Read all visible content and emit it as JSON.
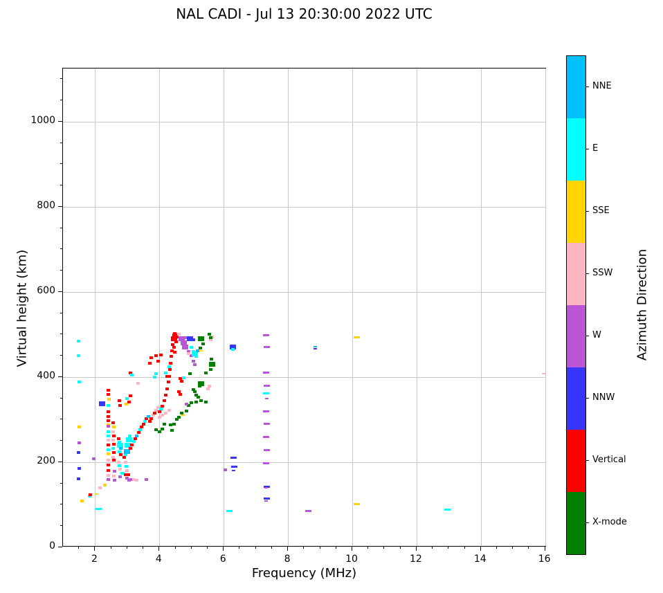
{
  "title": "NAL CADI - Jul 13 20:30:00 2022 UTC",
  "chart_data": {
    "type": "scatter",
    "title": "NAL CADI - Jul 13 20:30:00 2022 UTC",
    "xlabel": "Frequency (MHz)",
    "ylabel": "Virtual height (km)",
    "xlim": [
      1,
      16.05
    ],
    "ylim": [
      0,
      1125
    ],
    "grid": true,
    "x_major_ticks": [
      2,
      4,
      6,
      8,
      10,
      12,
      14,
      16
    ],
    "x_tick_labels": [
      "2",
      "4",
      "6",
      "8",
      "10",
      "12",
      "14",
      "16"
    ],
    "x_minor_step": 0.5,
    "y_major_ticks": [
      0,
      200,
      400,
      600,
      800,
      1000
    ],
    "y_tick_labels": [
      "0",
      "200",
      "400",
      "600",
      "800",
      "1000"
    ],
    "y_minor_step": 50,
    "legend_position": "right-colorbar",
    "colorbar": {
      "label": "Azimuth Direction",
      "segments_top_to_bottom": [
        {
          "key": "NNE",
          "label": "NNE"
        },
        {
          "key": "E",
          "label": "E"
        },
        {
          "key": "SSE",
          "label": "SSE"
        },
        {
          "key": "SSW",
          "label": "SSW"
        },
        {
          "key": "W",
          "label": "W"
        },
        {
          "key": "NNW",
          "label": "NNW"
        },
        {
          "key": "V",
          "label": "Vertical"
        },
        {
          "key": "X",
          "label": "X-mode"
        }
      ]
    },
    "colors": {
      "NNE": "#00BFFF",
      "E": "#00FFFF",
      "SSE": "#FFD400",
      "SSW": "#FFB6C1",
      "W": "#BA55D3",
      "NNW": "#3636FC",
      "V": "#FF0000",
      "X": "#008000"
    },
    "point_units": [
      "frequency_MHz",
      "virtual_height_km",
      "azimuth_key",
      "size_code"
    ],
    "points": [
      [
        1.48,
        485,
        "E"
      ],
      [
        1.48,
        450,
        "E"
      ],
      [
        1.51,
        389,
        "E"
      ],
      [
        1.51,
        283,
        "SSE"
      ],
      [
        1.51,
        246,
        "W"
      ],
      [
        1.48,
        223,
        "NNW"
      ],
      [
        1.51,
        185,
        "NNW"
      ],
      [
        1.48,
        161,
        "NNW"
      ],
      [
        1.6,
        109,
        "SSE"
      ],
      [
        1.82,
        120,
        "E"
      ],
      [
        1.84,
        124,
        "V"
      ],
      [
        2.05,
        125,
        "SSE",
        4
      ],
      [
        2.11,
        91,
        "E",
        3
      ],
      [
        2.16,
        140,
        "SSW"
      ],
      [
        2.3,
        146,
        "SSE"
      ],
      [
        1.95,
        208,
        "W"
      ],
      [
        2.21,
        337,
        "NNW",
        2
      ],
      [
        2.4,
        369,
        "V"
      ],
      [
        2.42,
        360,
        "V"
      ],
      [
        2.43,
        348,
        "SSE"
      ],
      [
        2.42,
        333,
        "E"
      ],
      [
        2.4,
        318,
        "V"
      ],
      [
        2.4,
        308,
        "V"
      ],
      [
        2.42,
        298,
        "V"
      ],
      [
        2.4,
        288,
        "SSE"
      ],
      [
        2.42,
        284,
        "W"
      ],
      [
        2.4,
        272,
        "E"
      ],
      [
        2.42,
        261,
        "E"
      ],
      [
        2.4,
        252,
        "SSW"
      ],
      [
        2.42,
        241,
        "V"
      ],
      [
        2.4,
        230,
        "E"
      ],
      [
        2.42,
        219,
        "SSE"
      ],
      [
        2.4,
        205,
        "SSW"
      ],
      [
        2.42,
        193,
        "V"
      ],
      [
        2.4,
        181,
        "V"
      ],
      [
        2.42,
        169,
        "SSW"
      ],
      [
        2.4,
        160,
        "W"
      ],
      [
        2.56,
        293,
        "V"
      ],
      [
        2.58,
        283,
        "SSE"
      ],
      [
        2.56,
        272,
        "SSW"
      ],
      [
        2.58,
        262,
        "V"
      ],
      [
        2.56,
        252,
        "SSW"
      ],
      [
        2.58,
        243,
        "V"
      ],
      [
        2.56,
        232,
        "E"
      ],
      [
        2.58,
        222,
        "V"
      ],
      [
        2.56,
        212,
        "SSW"
      ],
      [
        2.58,
        205,
        "V"
      ],
      [
        2.6,
        179,
        "W"
      ],
      [
        2.58,
        168,
        "SSW"
      ],
      [
        2.6,
        157,
        "W"
      ],
      [
        2.73,
        255,
        "V"
      ],
      [
        2.75,
        247,
        "E"
      ],
      [
        2.77,
        240,
        "E",
        2
      ],
      [
        2.79,
        232,
        "NNE"
      ],
      [
        2.75,
        225,
        "E"
      ],
      [
        2.8,
        218,
        "V"
      ],
      [
        2.73,
        200,
        "SSW"
      ],
      [
        2.75,
        192,
        "E"
      ],
      [
        2.77,
        184,
        "SSW"
      ],
      [
        2.77,
        166,
        "W"
      ],
      [
        2.78,
        334,
        "V"
      ],
      [
        2.75,
        345,
        "V"
      ],
      [
        2.98,
        336,
        "SSE"
      ],
      [
        2.84,
        174,
        "E"
      ],
      [
        3.03,
        171,
        "V"
      ],
      [
        3.0,
        163,
        "W"
      ],
      [
        3.05,
        158,
        "W"
      ],
      [
        3.12,
        160,
        "W"
      ],
      [
        3.6,
        159,
        "W"
      ],
      [
        3.2,
        160,
        "SSW"
      ],
      [
        3.3,
        158,
        "SSW"
      ],
      [
        2.95,
        200,
        "SSW"
      ],
      [
        2.97,
        190,
        "E"
      ],
      [
        3.0,
        180,
        "SSW"
      ],
      [
        2.95,
        170,
        "V"
      ],
      [
        3.0,
        350,
        "E"
      ],
      [
        3.05,
        342,
        "V"
      ],
      [
        3.1,
        356,
        "V"
      ],
      [
        3.1,
        410,
        "V"
      ],
      [
        3.15,
        405,
        "E"
      ],
      [
        3.33,
        385,
        "SSW"
      ],
      [
        2.9,
        212,
        "V"
      ],
      [
        2.95,
        218,
        "E"
      ],
      [
        3.0,
        225,
        "NNE",
        2
      ],
      [
        3.02,
        240,
        "E",
        2
      ],
      [
        3.05,
        252,
        "E",
        2
      ],
      [
        3.08,
        262,
        "E"
      ],
      [
        3.1,
        232,
        "V"
      ],
      [
        3.15,
        240,
        "V"
      ],
      [
        3.2,
        248,
        "E"
      ],
      [
        3.25,
        255,
        "V"
      ],
      [
        3.3,
        262,
        "NNE"
      ],
      [
        3.35,
        270,
        "V"
      ],
      [
        3.4,
        276,
        "E"
      ],
      [
        3.45,
        283,
        "V"
      ],
      [
        3.5,
        290,
        "V"
      ],
      [
        3.55,
        296,
        "E"
      ],
      [
        3.6,
        302,
        "V"
      ],
      [
        3.65,
        308,
        "NNE"
      ],
      [
        3.7,
        296,
        "V"
      ],
      [
        3.75,
        303,
        "V"
      ],
      [
        3.8,
        310,
        "SSW"
      ],
      [
        3.85,
        316,
        "V"
      ],
      [
        3.9,
        322,
        "SSW"
      ],
      [
        3.95,
        328,
        "SSW"
      ],
      [
        4.0,
        318,
        "V"
      ],
      [
        4.05,
        325,
        "E"
      ],
      [
        4.1,
        332,
        "V"
      ],
      [
        4.0,
        305,
        "SSW"
      ],
      [
        4.1,
        310,
        "SSW"
      ],
      [
        4.2,
        316,
        "SSW"
      ],
      [
        4.3,
        322,
        "SSW"
      ],
      [
        4.15,
        345,
        "V"
      ],
      [
        4.2,
        358,
        "V"
      ],
      [
        4.25,
        372,
        "V"
      ],
      [
        4.28,
        388,
        "V"
      ],
      [
        4.3,
        402,
        "V"
      ],
      [
        4.33,
        418,
        "V"
      ],
      [
        4.35,
        432,
        "V"
      ],
      [
        4.38,
        448,
        "V"
      ],
      [
        4.4,
        462,
        "V"
      ],
      [
        4.42,
        476,
        "V"
      ],
      [
        4.45,
        490,
        "V",
        2
      ],
      [
        4.47,
        502,
        "V"
      ],
      [
        4.5,
        497,
        "V",
        2
      ],
      [
        4.52,
        483,
        "V"
      ],
      [
        4.45,
        470,
        "V"
      ],
      [
        4.48,
        458,
        "V"
      ],
      [
        3.7,
        432,
        "V"
      ],
      [
        3.75,
        445,
        "V"
      ],
      [
        3.9,
        450,
        "V"
      ],
      [
        3.95,
        438,
        "V"
      ],
      [
        4.05,
        452,
        "V"
      ],
      [
        4.2,
        410,
        "E"
      ],
      [
        4.25,
        402,
        "V"
      ],
      [
        3.85,
        400,
        "E"
      ],
      [
        3.9,
        408,
        "E"
      ],
      [
        4.3,
        425,
        "E"
      ],
      [
        4.7,
        490,
        "W",
        2
      ],
      [
        4.75,
        480,
        "W",
        2
      ],
      [
        4.8,
        470,
        "W",
        2
      ],
      [
        4.85,
        492,
        "W"
      ],
      [
        4.9,
        460,
        "W"
      ],
      [
        5.0,
        450,
        "W"
      ],
      [
        5.05,
        438,
        "W"
      ],
      [
        5.1,
        430,
        "W"
      ],
      [
        4.95,
        490,
        "NNW",
        2
      ],
      [
        5.05,
        488,
        "NNW"
      ],
      [
        5.0,
        470,
        "E"
      ],
      [
        5.05,
        460,
        "E"
      ],
      [
        5.1,
        455,
        "E",
        2
      ],
      [
        5.15,
        448,
        "E"
      ],
      [
        5.18,
        462,
        "NNE"
      ],
      [
        4.9,
        455,
        "SSW"
      ],
      [
        4.6,
        500,
        "SSW"
      ],
      [
        5.6,
        488,
        "SSW"
      ],
      [
        5.65,
        495,
        "SSW"
      ],
      [
        5.5,
        372,
        "SSW"
      ],
      [
        5.55,
        378,
        "SSW"
      ],
      [
        5.3,
        462,
        "SSE",
        4
      ],
      [
        4.95,
        408,
        "X"
      ],
      [
        5.3,
        490,
        "X",
        2
      ],
      [
        5.35,
        478,
        "X"
      ],
      [
        5.28,
        468,
        "X"
      ],
      [
        5.55,
        500,
        "X"
      ],
      [
        5.6,
        492,
        "X"
      ],
      [
        5.65,
        430,
        "X",
        2
      ],
      [
        5.62,
        442,
        "X"
      ],
      [
        5.6,
        418,
        "X"
      ],
      [
        5.45,
        410,
        "X"
      ],
      [
        5.3,
        385,
        "X",
        2
      ],
      [
        5.25,
        378,
        "X"
      ],
      [
        5.1,
        365,
        "X"
      ],
      [
        5.05,
        370,
        "X"
      ],
      [
        5.15,
        358,
        "X"
      ],
      [
        5.2,
        352,
        "X"
      ],
      [
        4.65,
        396,
        "V"
      ],
      [
        4.7,
        390,
        "V"
      ],
      [
        4.75,
        398,
        "E"
      ],
      [
        4.6,
        366,
        "V"
      ],
      [
        4.65,
        360,
        "V"
      ],
      [
        3.9,
        276,
        "X"
      ],
      [
        4.0,
        272,
        "X"
      ],
      [
        4.1,
        278,
        "X"
      ],
      [
        4.15,
        290,
        "X"
      ],
      [
        4.35,
        288,
        "X"
      ],
      [
        4.45,
        290,
        "X"
      ],
      [
        4.4,
        274,
        "X"
      ],
      [
        4.55,
        300,
        "X"
      ],
      [
        4.6,
        306,
        "X"
      ],
      [
        4.7,
        315,
        "X"
      ],
      [
        4.85,
        320,
        "X"
      ],
      [
        4.9,
        333,
        "X"
      ],
      [
        5.0,
        340,
        "X"
      ],
      [
        5.15,
        342,
        "X"
      ],
      [
        5.3,
        345,
        "X"
      ],
      [
        5.45,
        342,
        "X"
      ],
      [
        4.84,
        337,
        "W"
      ],
      [
        4.73,
        310,
        "SSE",
        4
      ],
      [
        6.28,
        471,
        "NNW",
        2
      ],
      [
        6.28,
        465,
        "E"
      ],
      [
        6.3,
        210,
        "NNW",
        3
      ],
      [
        6.32,
        189,
        "NNW",
        3
      ],
      [
        6.3,
        181,
        "NNW",
        4
      ],
      [
        6.04,
        182,
        "W"
      ],
      [
        6.17,
        86,
        "E",
        3
      ],
      [
        7.33,
        499,
        "W",
        3
      ],
      [
        7.35,
        470,
        "W",
        3
      ],
      [
        7.33,
        411,
        "W",
        3
      ],
      [
        7.35,
        379,
        "W",
        3
      ],
      [
        7.33,
        361,
        "E",
        3
      ],
      [
        7.35,
        350,
        "W",
        4
      ],
      [
        7.33,
        320,
        "W",
        3
      ],
      [
        7.35,
        290,
        "W",
        3
      ],
      [
        7.33,
        259,
        "W",
        3
      ],
      [
        7.35,
        228,
        "W",
        3
      ],
      [
        7.33,
        198,
        "W",
        3
      ],
      [
        7.35,
        143,
        "NNW",
        3
      ],
      [
        7.33,
        139,
        "W",
        4
      ],
      [
        7.35,
        114,
        "NNW",
        3
      ],
      [
        7.33,
        109,
        "W",
        4
      ],
      [
        8.64,
        86,
        "W",
        3
      ],
      [
        8.85,
        472,
        "NNE",
        4
      ],
      [
        8.85,
        467,
        "NNW",
        4
      ],
      [
        10.15,
        494,
        "SSE",
        3
      ],
      [
        10.15,
        102,
        "SSE",
        3
      ],
      [
        12.95,
        88,
        "E",
        3
      ],
      [
        15.95,
        408,
        "SSW",
        4
      ]
    ]
  }
}
